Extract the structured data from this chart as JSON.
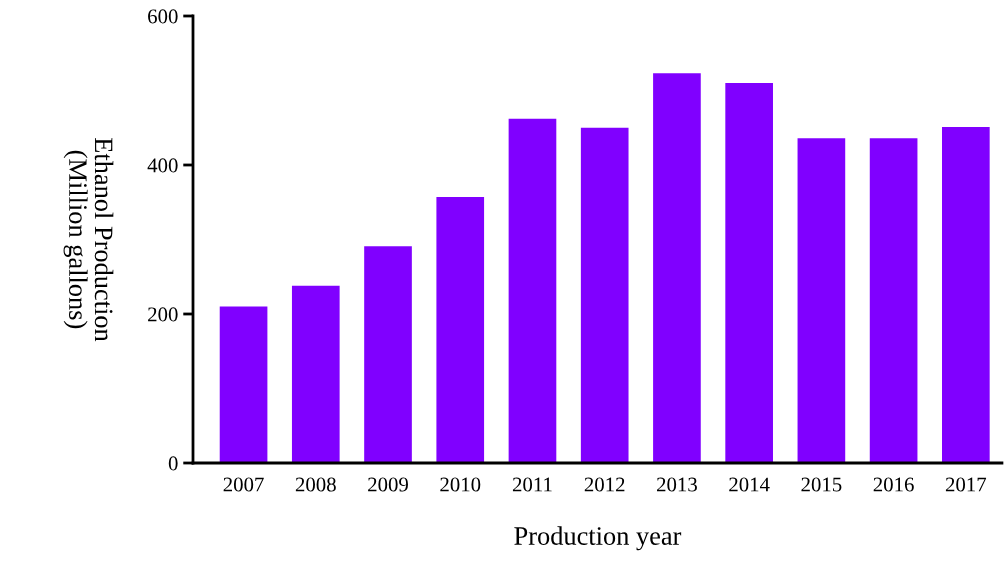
{
  "chart_data": {
    "type": "bar",
    "xlabel": "Production year",
    "ylabel": "Ethanol Production\n(Million gallons)",
    "categories": [
      "2007",
      "2008",
      "2009",
      "2010",
      "2011",
      "2012",
      "2013",
      "2014",
      "2015",
      "2016",
      "2017"
    ],
    "values": [
      210,
      238,
      291,
      357,
      462,
      450,
      523,
      510,
      436,
      436,
      451
    ],
    "color": "#8000ff",
    "ylim": [
      0,
      600
    ],
    "yticks": [
      0,
      200,
      400,
      600
    ],
    "grid": false
  }
}
